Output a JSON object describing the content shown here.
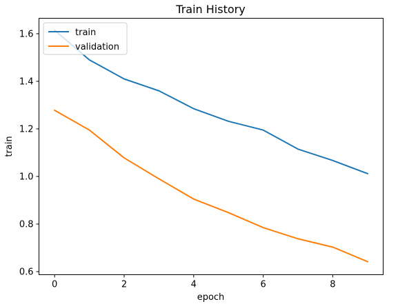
{
  "chart_data": {
    "type": "line",
    "title": "Train History",
    "xlabel": "epoch",
    "ylabel": "train",
    "xlim": [
      -0.45,
      9.45
    ],
    "ylim": [
      0.587,
      1.665
    ],
    "xticks": [
      0,
      2,
      4,
      6,
      8
    ],
    "yticks": [
      0.6,
      0.8,
      1.0,
      1.2,
      1.4,
      1.6
    ],
    "xtick_labels": [
      "0",
      "2",
      "4",
      "6",
      "8"
    ],
    "ytick_labels": [
      "0.6",
      "0.8",
      "1.0",
      "1.2",
      "1.4",
      "1.6"
    ],
    "grid": false,
    "legend_position": "top-left",
    "x": [
      0,
      1,
      2,
      3,
      4,
      5,
      6,
      7,
      8,
      9
    ],
    "series": [
      {
        "name": "train",
        "color": "#1f77b4",
        "values": [
          1.615,
          1.49,
          1.41,
          1.36,
          1.285,
          1.232,
          1.195,
          1.115,
          1.067,
          1.012
        ]
      },
      {
        "name": "validation",
        "color": "#ff7f0e",
        "values": [
          1.278,
          1.195,
          1.078,
          0.99,
          0.905,
          0.848,
          0.785,
          0.738,
          0.703,
          0.642
        ]
      }
    ]
  }
}
